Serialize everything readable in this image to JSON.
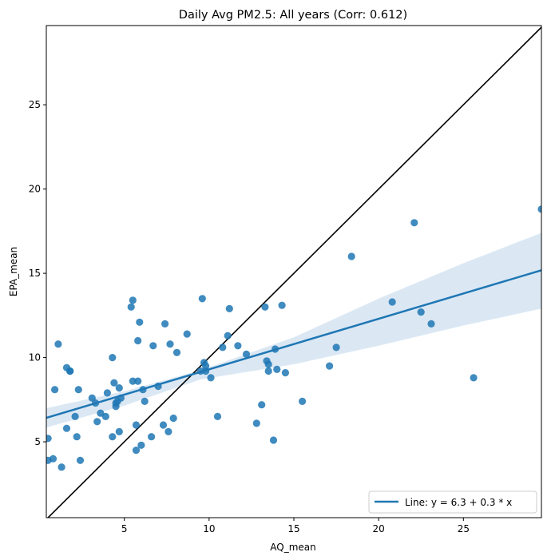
{
  "chart_data": {
    "type": "scatter",
    "title": "Daily Avg PM2.5: All years (Corr: 0.612)",
    "xlabel": "AQ_mean",
    "ylabel": "EPA_mean",
    "xlim": [
      0.4,
      29.6
    ],
    "ylim": [
      0.5,
      29.7
    ],
    "xticks": [
      5,
      10,
      15,
      20,
      25
    ],
    "yticks": [
      5,
      10,
      15,
      20,
      25
    ],
    "grid": false,
    "legend_position": "bottom-right",
    "colors": {
      "points": "#1f77b4",
      "line": "#1f77b4",
      "band": "#cfe0f0",
      "identity": "#000000"
    },
    "identity_line": {
      "x": [
        0.4,
        29.6
      ],
      "y": [
        0.4,
        29.6
      ]
    },
    "regression": {
      "label": "Line: y = 6.3 + 0.3 * x",
      "intercept": 6.3,
      "slope": 0.3,
      "x_range": [
        0.4,
        29.6
      ],
      "band_upper": [
        [
          0.4,
          7.0
        ],
        [
          5,
          8.0
        ],
        [
          9.5,
          9.25
        ],
        [
          15,
          11.2
        ],
        [
          20,
          13.5
        ],
        [
          25,
          15.6
        ],
        [
          29.6,
          17.4
        ]
      ],
      "band_lower": [
        [
          0.4,
          5.85
        ],
        [
          5,
          7.15
        ],
        [
          9.5,
          8.7
        ],
        [
          15,
          9.6
        ],
        [
          20,
          10.7
        ],
        [
          25,
          11.9
        ],
        [
          29.6,
          12.9
        ]
      ]
    },
    "points": [
      [
        0.5,
        3.9
      ],
      [
        0.5,
        5.2
      ],
      [
        0.8,
        4.0
      ],
      [
        0.9,
        8.1
      ],
      [
        1.1,
        10.8
      ],
      [
        1.3,
        3.5
      ],
      [
        1.6,
        5.8
      ],
      [
        1.6,
        9.4
      ],
      [
        1.8,
        9.2
      ],
      [
        1.8,
        9.2
      ],
      [
        2.1,
        6.5
      ],
      [
        2.2,
        5.3
      ],
      [
        2.3,
        8.1
      ],
      [
        2.4,
        3.9
      ],
      [
        3.1,
        7.6
      ],
      [
        3.3,
        7.3
      ],
      [
        3.4,
        6.2
      ],
      [
        3.6,
        6.7
      ],
      [
        3.9,
        6.5
      ],
      [
        4.0,
        7.9
      ],
      [
        4.3,
        5.3
      ],
      [
        4.3,
        10.0
      ],
      [
        4.4,
        8.5
      ],
      [
        4.5,
        7.1
      ],
      [
        4.5,
        7.3
      ],
      [
        4.6,
        7.4
      ],
      [
        4.7,
        5.6
      ],
      [
        4.7,
        8.2
      ],
      [
        4.8,
        7.6
      ],
      [
        5.4,
        13.0
      ],
      [
        5.5,
        8.6
      ],
      [
        5.5,
        13.4
      ],
      [
        5.7,
        4.5
      ],
      [
        5.7,
        6.0
      ],
      [
        5.8,
        8.6
      ],
      [
        5.8,
        11.0
      ],
      [
        5.9,
        12.1
      ],
      [
        6.0,
        4.8
      ],
      [
        6.1,
        8.1
      ],
      [
        6.2,
        7.4
      ],
      [
        6.6,
        5.3
      ],
      [
        6.7,
        10.7
      ],
      [
        7.0,
        8.3
      ],
      [
        7.3,
        6.0
      ],
      [
        7.4,
        12.0
      ],
      [
        7.6,
        5.6
      ],
      [
        7.7,
        10.8
      ],
      [
        7.9,
        6.4
      ],
      [
        8.1,
        10.3
      ],
      [
        8.7,
        11.4
      ],
      [
        9.5,
        9.2
      ],
      [
        9.6,
        13.5
      ],
      [
        9.7,
        9.7
      ],
      [
        9.8,
        9.5
      ],
      [
        9.8,
        9.2
      ],
      [
        10.1,
        8.8
      ],
      [
        10.5,
        6.5
      ],
      [
        10.8,
        10.6
      ],
      [
        11.1,
        11.3
      ],
      [
        11.2,
        12.9
      ],
      [
        11.7,
        10.7
      ],
      [
        12.2,
        10.2
      ],
      [
        12.8,
        6.1
      ],
      [
        13.1,
        7.2
      ],
      [
        13.3,
        13.0
      ],
      [
        13.4,
        9.8
      ],
      [
        13.5,
        9.6
      ],
      [
        13.5,
        9.2
      ],
      [
        13.8,
        5.1
      ],
      [
        13.9,
        10.5
      ],
      [
        14.0,
        9.3
      ],
      [
        14.3,
        13.1
      ],
      [
        14.5,
        9.1
      ],
      [
        15.5,
        7.4
      ],
      [
        17.1,
        9.5
      ],
      [
        17.5,
        10.6
      ],
      [
        18.4,
        16.0
      ],
      [
        20.8,
        13.3
      ],
      [
        22.1,
        18.0
      ],
      [
        22.5,
        12.7
      ],
      [
        23.1,
        12.0
      ],
      [
        25.6,
        8.8
      ],
      [
        29.6,
        18.8
      ]
    ]
  }
}
